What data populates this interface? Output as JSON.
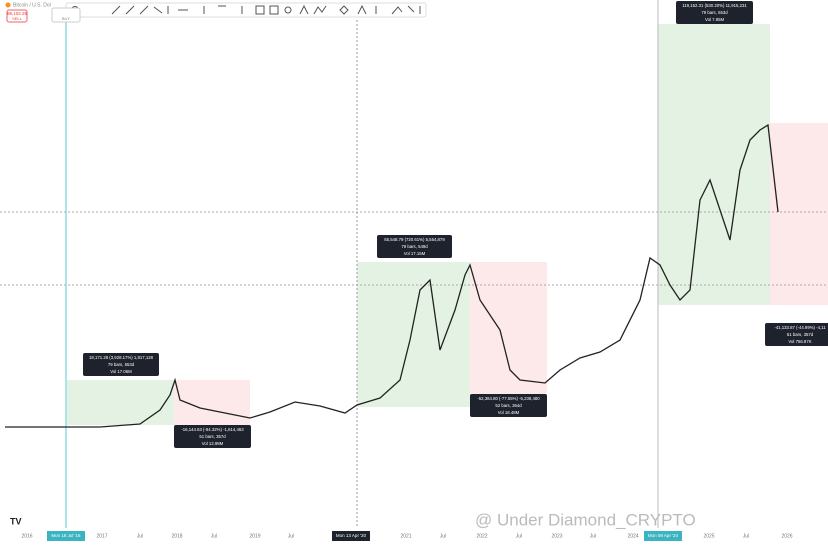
{
  "header": {
    "symbol": "Bitcoin / U.S. Dol",
    "price": "89,102.28",
    "side": "SELL",
    "buy": "BUY"
  },
  "measures": [
    {
      "change": "18,171.28 (3,928.17%) 1,817,128",
      "bars": "79 bars, 553d",
      "volume": "Vol 17.06M"
    },
    {
      "change": "-16,144.63 (-84.32%) -1,614,463",
      "bars": "51 bars, 357d",
      "volume": "Vol 13.98M"
    },
    {
      "change": "55,548.79 (720.61%) 5,554,879",
      "bars": "79 bars, 549d",
      "volume": "Vol 17.15M"
    },
    {
      "change": "-52,384.80 (-77.55%) -5,238,480",
      "bars": "52 bars, 364d",
      "volume": "Vol 18.48M"
    },
    {
      "change": "119,152.31 (530.20%) 11,915,231",
      "bars": "79 bars, 553d",
      "volume": "Vol 7.85M"
    },
    {
      "change": "-41,133.87 (-44.99%) -4,11",
      "bars": "51 bars, 357d",
      "volume": "Vol 756.87K"
    }
  ],
  "x_axis": [
    "2016",
    "2017",
    "Jul",
    "2018",
    "Jul",
    "2019",
    "Jul",
    "2021",
    "Jul",
    "2022",
    "Jul",
    "2023",
    "Jul",
    "2024",
    "2025",
    "Jul",
    "2026"
  ],
  "crosshair_dates": [
    "Mon 18 Jul '16",
    "Mon 13 Apr '20",
    "Mon 08 Apr '24"
  ],
  "watermark": "@ Under Diamond_CRYPTO"
}
